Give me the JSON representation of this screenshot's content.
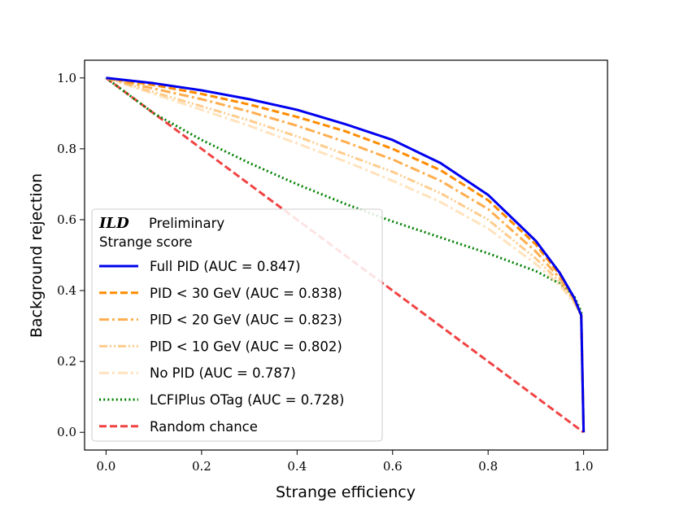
{
  "chart_data": {
    "type": "line",
    "xlabel": "Strange efficiency",
    "ylabel": "Background rejection",
    "xlim": [
      -0.045,
      1.05
    ],
    "ylim": [
      -0.05,
      1.05
    ],
    "xticks": [
      "0.0",
      "0.2",
      "0.4",
      "0.6",
      "0.8",
      "1.0"
    ],
    "yticks": [
      "0.0",
      "0.2",
      "0.4",
      "0.6",
      "0.8",
      "1.0"
    ],
    "grid": false,
    "legend_placement": "lower-left",
    "legend_title_bold": "ILD",
    "legend_title_rest": "Preliminary",
    "legend_subtitle": "Strange score",
    "series": [
      {
        "name": "Full PID (AUC = 0.847)",
        "color": "#0000ee",
        "style": "solid",
        "opacity": 1.0,
        "x": [
          0,
          0.1,
          0.2,
          0.3,
          0.4,
          0.5,
          0.6,
          0.7,
          0.8,
          0.9,
          0.95,
          0.98,
          0.995,
          1.0
        ],
        "y": [
          1.0,
          0.985,
          0.965,
          0.94,
          0.91,
          0.87,
          0.825,
          0.76,
          0.67,
          0.54,
          0.45,
          0.38,
          0.33,
          0.0
        ]
      },
      {
        "name": "PID < 30 GeV (AUC = 0.838)",
        "color": "#ff8c00",
        "style": "dashed",
        "opacity": 1.0,
        "x": [
          0,
          0.1,
          0.2,
          0.3,
          0.4,
          0.5,
          0.6,
          0.7,
          0.8,
          0.9,
          0.95,
          0.98,
          0.995,
          1.0
        ],
        "y": [
          1.0,
          0.98,
          0.955,
          0.925,
          0.89,
          0.85,
          0.8,
          0.74,
          0.655,
          0.53,
          0.445,
          0.38,
          0.33,
          0.0
        ]
      },
      {
        "name": "PID < 20 GeV (AUC = 0.823)",
        "color": "#ffa030",
        "style": "dashdot",
        "opacity": 0.85,
        "x": [
          0,
          0.1,
          0.2,
          0.3,
          0.4,
          0.5,
          0.6,
          0.7,
          0.8,
          0.9,
          0.95,
          0.98,
          0.995,
          1.0
        ],
        "y": [
          1.0,
          0.97,
          0.94,
          0.905,
          0.865,
          0.82,
          0.77,
          0.71,
          0.63,
          0.51,
          0.435,
          0.375,
          0.33,
          0.0
        ]
      },
      {
        "name": "PID < 10 GeV (AUC = 0.802)",
        "color": "#ffbb66",
        "style": "dashdotdot",
        "opacity": 0.75,
        "x": [
          0,
          0.1,
          0.2,
          0.3,
          0.4,
          0.5,
          0.6,
          0.7,
          0.8,
          0.9,
          0.95,
          0.98,
          0.995,
          1.0
        ],
        "y": [
          1.0,
          0.96,
          0.92,
          0.88,
          0.835,
          0.785,
          0.735,
          0.675,
          0.6,
          0.49,
          0.425,
          0.37,
          0.33,
          0.0
        ]
      },
      {
        "name": "No PID (AUC = 0.787)",
        "color": "#ffd9a8",
        "style": "dashdot",
        "opacity": 0.75,
        "x": [
          0,
          0.1,
          0.2,
          0.3,
          0.4,
          0.5,
          0.6,
          0.7,
          0.8,
          0.9,
          0.95,
          0.98,
          0.995,
          1.0
        ],
        "y": [
          1.0,
          0.955,
          0.91,
          0.865,
          0.815,
          0.765,
          0.71,
          0.65,
          0.575,
          0.475,
          0.415,
          0.365,
          0.33,
          0.0
        ]
      },
      {
        "name": "LCFIPlus OTag (AUC = 0.728)",
        "color": "#008000",
        "style": "dotted",
        "opacity": 1.0,
        "x": [
          0,
          0.1,
          0.2,
          0.3,
          0.4,
          0.5,
          0.6,
          0.7,
          0.8,
          0.9,
          0.95,
          0.98,
          0.995,
          1.0
        ],
        "y": [
          1.0,
          0.9,
          0.825,
          0.76,
          0.7,
          0.645,
          0.595,
          0.55,
          0.505,
          0.455,
          0.42,
          0.385,
          0.34,
          0.0
        ]
      },
      {
        "name": "Random chance",
        "color": "#ee2222",
        "style": "dashed",
        "opacity": 0.85,
        "x": [
          0,
          1.0
        ],
        "y": [
          1.0,
          0.0
        ]
      }
    ]
  }
}
